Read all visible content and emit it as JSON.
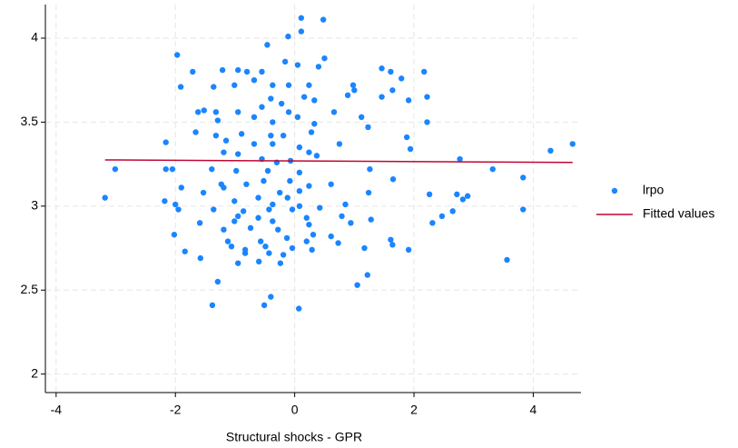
{
  "chart_data": {
    "type": "scatter",
    "xlabel": "Structural shocks - GPR",
    "xlim": [
      -4.18,
      4.8
    ],
    "ylim": [
      1.89,
      4.2
    ],
    "xticks": [
      -4,
      -2,
      0,
      2,
      4
    ],
    "yticks": [
      2,
      2.5,
      3,
      3.5,
      4
    ],
    "grid": true,
    "legend": "right",
    "series": [
      {
        "name": "lrpo",
        "color": "#1a85ff",
        "x": [
          0.11,
          0.48,
          0.11,
          -0.11,
          -1.97,
          -0.46,
          -0.16,
          -1.71,
          -1.21,
          -0.95,
          -0.8,
          -0.55,
          0.4,
          0.5,
          0.05,
          1.46,
          2.17,
          1.61,
          1.79,
          -1.91,
          -1.36,
          -1.01,
          -0.68,
          -0.37,
          -0.1,
          0.24,
          0.98,
          1.64,
          1.91,
          2.22,
          0.89,
          1.0,
          1.46,
          -1.52,
          -1.62,
          -1.32,
          -0.95,
          -0.55,
          -0.4,
          -0.22,
          0.16,
          0.33,
          0.66,
          -0.1,
          -1.29,
          -0.68,
          -0.37,
          0.05,
          0.33,
          1.12,
          1.23,
          2.22,
          -1.66,
          -1.32,
          -0.89,
          -0.4,
          -0.19,
          0.28,
          0.75,
          1.88,
          -2.16,
          -1.15,
          -0.68,
          -0.37,
          0.08,
          0.24,
          1.94,
          4.29,
          4.66,
          -1.19,
          -0.95,
          -0.55,
          -0.3,
          0.37,
          -0.07,
          2.77,
          -2.05,
          -2.16,
          -3.01,
          -1.39,
          -0.98,
          -0.45,
          0.08,
          1.26,
          3.32,
          3.83,
          1.65,
          -1.23,
          -1.19,
          -0.81,
          -0.52,
          -0.08,
          0.24,
          0.61,
          -1.9,
          -1.53,
          -0.25,
          0.08,
          1.24,
          2.26,
          2.72,
          2.9,
          2.82,
          -3.18,
          -2.18,
          -0.61,
          -0.12,
          -2.0,
          -1.01,
          -0.37,
          0.08,
          0.42,
          0.85,
          -1.95,
          -1.36,
          -0.86,
          -0.43,
          -0.04,
          3.83,
          -0.95,
          -0.61,
          0.2,
          0.79,
          2.47,
          1.28,
          -1.59,
          -1.01,
          -0.37,
          0.24,
          2.31,
          0.94,
          -1.19,
          -0.74,
          -0.28,
          0.31,
          -2.02,
          2.65,
          0.61,
          -0.13,
          -0.57,
          1.61,
          -1.12,
          0.73,
          0.2,
          -1.06,
          1.64,
          -0.49,
          -0.04,
          1.17,
          1.91,
          -1.84,
          -0.83,
          -0.43,
          -0.19,
          0.29,
          -1.58,
          -0.6,
          -0.24,
          3.56,
          -0.95,
          1.05,
          1.22,
          -1.29,
          -0.4,
          -1.38,
          -0.51,
          0.07,
          -0.83
        ],
        "values": [
          4.12,
          4.11,
          4.04,
          4.01,
          3.9,
          3.96,
          3.86,
          3.8,
          3.81,
          3.81,
          3.8,
          3.8,
          3.83,
          3.88,
          3.84,
          3.82,
          3.8,
          3.8,
          3.76,
          3.71,
          3.71,
          3.72,
          3.75,
          3.72,
          3.72,
          3.72,
          3.72,
          3.69,
          3.63,
          3.65,
          3.66,
          3.69,
          3.65,
          3.57,
          3.56,
          3.56,
          3.56,
          3.59,
          3.64,
          3.61,
          3.65,
          3.63,
          3.56,
          3.56,
          3.51,
          3.53,
          3.5,
          3.53,
          3.49,
          3.53,
          3.47,
          3.5,
          3.44,
          3.42,
          3.43,
          3.42,
          3.42,
          3.44,
          3.37,
          3.41,
          3.38,
          3.39,
          3.37,
          3.37,
          3.35,
          3.32,
          3.34,
          3.33,
          3.37,
          3.32,
          3.31,
          3.28,
          3.26,
          3.3,
          3.27,
          3.28,
          3.22,
          3.22,
          3.22,
          3.22,
          3.21,
          3.21,
          3.2,
          3.22,
          3.22,
          3.17,
          3.16,
          3.13,
          3.11,
          3.13,
          3.15,
          3.15,
          3.12,
          3.13,
          3.11,
          3.08,
          3.08,
          3.09,
          3.08,
          3.07,
          3.07,
          3.06,
          3.04,
          3.05,
          3.03,
          3.05,
          3.05,
          3.01,
          3.03,
          3.01,
          3.0,
          2.99,
          3.01,
          2.98,
          2.98,
          2.97,
          2.98,
          2.98,
          2.98,
          2.94,
          2.93,
          2.93,
          2.94,
          2.94,
          2.92,
          2.9,
          2.91,
          2.91,
          2.89,
          2.9,
          2.9,
          2.86,
          2.87,
          2.86,
          2.83,
          2.83,
          2.97,
          2.82,
          2.81,
          2.79,
          2.8,
          2.79,
          2.78,
          2.79,
          2.76,
          2.77,
          2.76,
          2.75,
          2.75,
          2.74,
          2.73,
          2.74,
          2.72,
          2.71,
          2.74,
          2.69,
          2.67,
          2.66,
          2.68,
          2.66,
          2.53,
          2.59,
          2.55,
          2.46,
          2.41,
          2.41,
          2.39,
          2.72
        ]
      },
      {
        "name": "Fitted values",
        "type": "line",
        "color": "#c10534",
        "x": [
          -3.18,
          4.66
        ],
        "values": [
          3.275,
          3.26
        ]
      }
    ]
  }
}
